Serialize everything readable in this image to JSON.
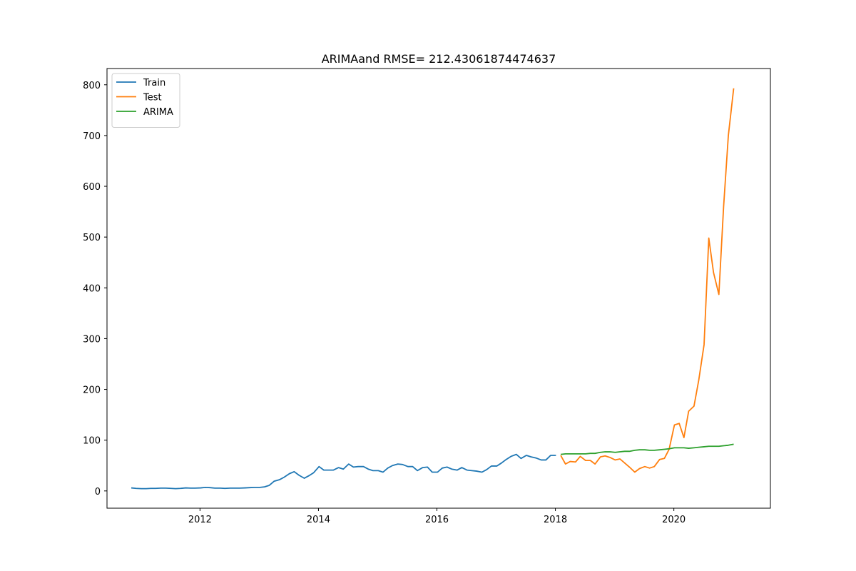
{
  "chart_data": {
    "type": "line",
    "title": "ARIMAand RMSE= 212.43061874474637",
    "xlabel": "",
    "ylabel": "",
    "x_ticks": [
      2012,
      2014,
      2016,
      2018,
      2020
    ],
    "y_ticks": [
      0,
      100,
      200,
      300,
      400,
      500,
      600,
      700,
      800
    ],
    "xlim": [
      2010.43,
      2021.63
    ],
    "ylim": [
      -34,
      832
    ],
    "grid": false,
    "legend_position": "upper-left",
    "colors": {
      "Train": "#1f77b4",
      "Test": "#ff7f0e",
      "ARIMA": "#2ca02c"
    },
    "series": [
      {
        "name": "Train",
        "x": [
          2010.84,
          2010.92,
          2011.01,
          2011.09,
          2011.17,
          2011.25,
          2011.34,
          2011.42,
          2011.51,
          2011.59,
          2011.67,
          2011.76,
          2011.84,
          2011.92,
          2012.01,
          2012.09,
          2012.17,
          2012.25,
          2012.34,
          2012.42,
          2012.51,
          2012.59,
          2012.67,
          2012.76,
          2012.84,
          2012.92,
          2013.01,
          2013.09,
          2013.17,
          2013.25,
          2013.34,
          2013.42,
          2013.51,
          2013.59,
          2013.67,
          2013.76,
          2013.84,
          2013.92,
          2014.01,
          2014.09,
          2014.17,
          2014.25,
          2014.34,
          2014.42,
          2014.51,
          2014.59,
          2014.67,
          2014.76,
          2014.84,
          2014.92,
          2015.01,
          2015.09,
          2015.17,
          2015.25,
          2015.34,
          2015.42,
          2015.51,
          2015.59,
          2015.67,
          2015.76,
          2015.84,
          2015.92,
          2016.01,
          2016.09,
          2016.17,
          2016.25,
          2016.34,
          2016.42,
          2016.51,
          2016.59,
          2016.67,
          2016.76,
          2016.84,
          2016.92,
          2017.01,
          2017.09,
          2017.17,
          2017.25,
          2017.34,
          2017.42,
          2017.51,
          2017.59,
          2017.67,
          2017.76,
          2017.84,
          2017.92,
          2018.01
        ],
        "values": [
          6,
          5,
          4.5,
          4.5,
          5,
          5,
          5.5,
          5.5,
          5,
          4.5,
          5,
          6,
          5.5,
          5.5,
          6,
          7,
          6.5,
          5.5,
          5.5,
          5,
          5.5,
          5.5,
          5.5,
          6,
          6.5,
          7,
          7,
          8,
          11,
          19,
          22,
          27,
          34,
          38,
          31,
          25,
          30,
          36,
          48,
          41,
          41,
          41,
          46,
          43,
          53,
          47,
          48,
          48,
          43,
          40,
          40,
          37,
          45,
          50,
          53,
          52,
          48,
          48,
          40,
          46,
          47,
          37,
          37,
          45,
          47,
          43,
          41,
          46,
          41,
          40,
          39,
          37,
          42,
          49,
          49,
          55,
          62,
          68,
          72,
          64,
          70,
          67,
          65,
          61,
          61,
          70,
          70
        ]
      },
      {
        "name": "Test",
        "x": [
          2018.09,
          2018.17,
          2018.25,
          2018.34,
          2018.42,
          2018.51,
          2018.59,
          2018.67,
          2018.76,
          2018.84,
          2018.92,
          2019.01,
          2019.09,
          2019.17,
          2019.25,
          2019.34,
          2019.42,
          2019.51,
          2019.59,
          2019.67,
          2019.76,
          2019.84,
          2019.92,
          2020.01,
          2020.09,
          2020.17,
          2020.25,
          2020.34,
          2020.42,
          2020.51,
          2020.59,
          2020.67,
          2020.76,
          2020.84,
          2020.92,
          2021.01
        ],
        "values": [
          70,
          53,
          58,
          57,
          68,
          60,
          60,
          53,
          67,
          69,
          66,
          61,
          63,
          55,
          47,
          37,
          44,
          48,
          45,
          48,
          62,
          64,
          82,
          130,
          133,
          105,
          157,
          167,
          218,
          288,
          498,
          430,
          387,
          560,
          700,
          793
        ]
      },
      {
        "name": "ARIMA",
        "x": [
          2018.09,
          2018.17,
          2018.25,
          2018.34,
          2018.42,
          2018.51,
          2018.59,
          2018.67,
          2018.76,
          2018.84,
          2018.92,
          2019.01,
          2019.09,
          2019.17,
          2019.25,
          2019.34,
          2019.42,
          2019.51,
          2019.59,
          2019.67,
          2019.76,
          2019.84,
          2019.92,
          2020.01,
          2020.09,
          2020.17,
          2020.25,
          2020.34,
          2020.42,
          2020.51,
          2020.59,
          2020.67,
          2020.76,
          2020.84,
          2020.92,
          2021.01
        ],
        "values": [
          72,
          73,
          73,
          73,
          73,
          73,
          74,
          74,
          76,
          77,
          77,
          76,
          77,
          78,
          78,
          80,
          81,
          81,
          80,
          80,
          81,
          82,
          83,
          85,
          85,
          85,
          84,
          85,
          86,
          87,
          88,
          88,
          88,
          89,
          90,
          92
        ]
      }
    ]
  }
}
